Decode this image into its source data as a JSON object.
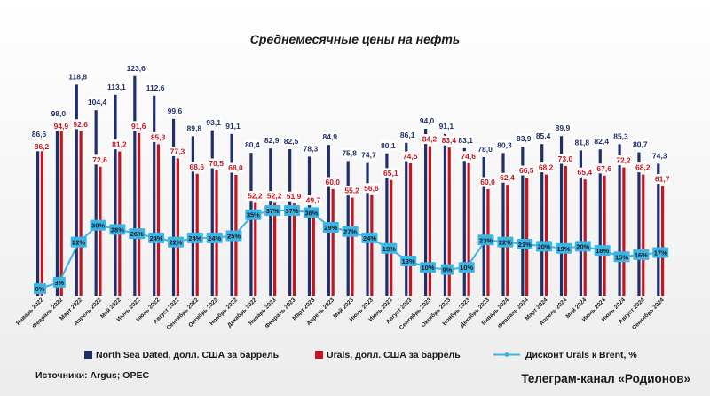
{
  "title": "Среднемесячные цены на нефть",
  "source": "Источники: Argus; OPEC",
  "telegram": "Телеграм-канал «Родионов»",
  "colors": {
    "brent": "#1f2f6b",
    "urals": "#c8141e",
    "discount": "#3bb4e6",
    "label_bg": "#ffffff",
    "pct_bg": "#3bb4e6"
  },
  "chart_data": {
    "type": "bar",
    "title": "Среднемесячные цены на нефть",
    "categories": [
      "Январь 2022",
      "Февраль 2022",
      "Март 2022",
      "Апрель 2022",
      "Май 2022",
      "Июнь 2022",
      "Июль 2022",
      "Август 2022",
      "Сентябрь 2022",
      "Октябрь 2022",
      "Ноябрь 2022",
      "Декабрь 2022",
      "Январь 2023",
      "Февраль 2023",
      "Март 2023",
      "Апрель 2023",
      "Май 2023",
      "Июнь 2023",
      "Июль 2023",
      "Август 2023",
      "Сентябрь 2023",
      "Октябрь 2023",
      "Ноябрь 2023",
      "Декабрь 2023",
      "Январь 2024",
      "Февраль 2024",
      "Март 2024",
      "Апрель 2024",
      "Май 2024",
      "Июнь 2024",
      "Июль 2024",
      "Август 2024",
      "Сентябрь 2024"
    ],
    "series": [
      {
        "name": "North Sea Dated, долл. США за баррель",
        "kind": "bar",
        "values": [
          86.6,
          98.0,
          118.8,
          104.4,
          113.1,
          123.6,
          112.6,
          99.6,
          89.8,
          93.1,
          91.1,
          80.4,
          82.9,
          82.5,
          78.3,
          84.9,
          75.8,
          74.7,
          80.1,
          86.1,
          94.0,
          91.1,
          83.1,
          78.0,
          80.3,
          83.9,
          85.4,
          89.9,
          81.8,
          82.4,
          85.3,
          80.7,
          74.3
        ],
        "labels": [
          "86,6",
          "98,0",
          "118,8",
          "104,4",
          "113,1",
          "123,6",
          "112,6",
          "99,6",
          "89,8",
          "93,1",
          "91,1",
          "80,4",
          "82,9",
          "82,5",
          "78,3",
          "84,9",
          "75,8",
          "74,7",
          "80,1",
          "86,1",
          "94,0",
          "91,1",
          "83,1",
          "78,0",
          "80,3",
          "83,9",
          "85,4",
          "89,9",
          "81,8",
          "82,4",
          "85,3",
          "80,7",
          "74,3"
        ]
      },
      {
        "name": "Urals, долл. США за баррель",
        "kind": "bar",
        "values": [
          86.2,
          94.9,
          92.6,
          72.6,
          81.2,
          91.6,
          85.3,
          77.3,
          68.6,
          70.5,
          68.0,
          52.2,
          52.2,
          51.9,
          49.7,
          60.0,
          55.2,
          56.6,
          65.1,
          74.5,
          84.2,
          83.4,
          74.6,
          60.0,
          62.4,
          66.5,
          68.2,
          73.0,
          65.4,
          67.6,
          72.2,
          68.2,
          61.7
        ],
        "labels": [
          "86,2",
          "94,9",
          "92,6",
          "72,6",
          "81,2",
          "91,6",
          "85,3",
          "77,3",
          "68,6",
          "70,5",
          "68,0",
          "52,2",
          "52,2",
          "51,9",
          "49,7",
          "60,0",
          "55,2",
          "56,6",
          "65,1",
          "74,5",
          "84,2",
          "83,4",
          "74,6",
          "60,0",
          "62,4",
          "66,5",
          "68,2",
          "73,0",
          "65,4",
          "67,6",
          "72,2",
          "68,2",
          "61,7"
        ]
      },
      {
        "name": "Дисконт Urals к Brent, %",
        "kind": "line",
        "values": [
          0,
          3,
          22,
          30,
          28,
          26,
          24,
          22,
          24,
          24,
          25,
          35,
          37,
          37,
          36,
          29,
          27,
          24,
          19,
          13,
          10,
          9,
          10,
          23,
          22,
          21,
          20,
          19,
          20,
          18,
          15,
          16,
          17
        ],
        "labels": [
          "0%",
          "3%",
          "22%",
          "30%",
          "28%",
          "26%",
          "24%",
          "22%",
          "24%",
          "24%",
          "25%",
          "35%",
          "37%",
          "37%",
          "36%",
          "29%",
          "27%",
          "24%",
          "19%",
          "13%",
          "10%",
          "9%",
          "10%",
          "23%",
          "22%",
          "21%",
          "20%",
          "19%",
          "20%",
          "18%",
          "15%",
          "16%",
          "17%"
        ]
      }
    ],
    "legend_position": "bottom",
    "grid": false
  }
}
